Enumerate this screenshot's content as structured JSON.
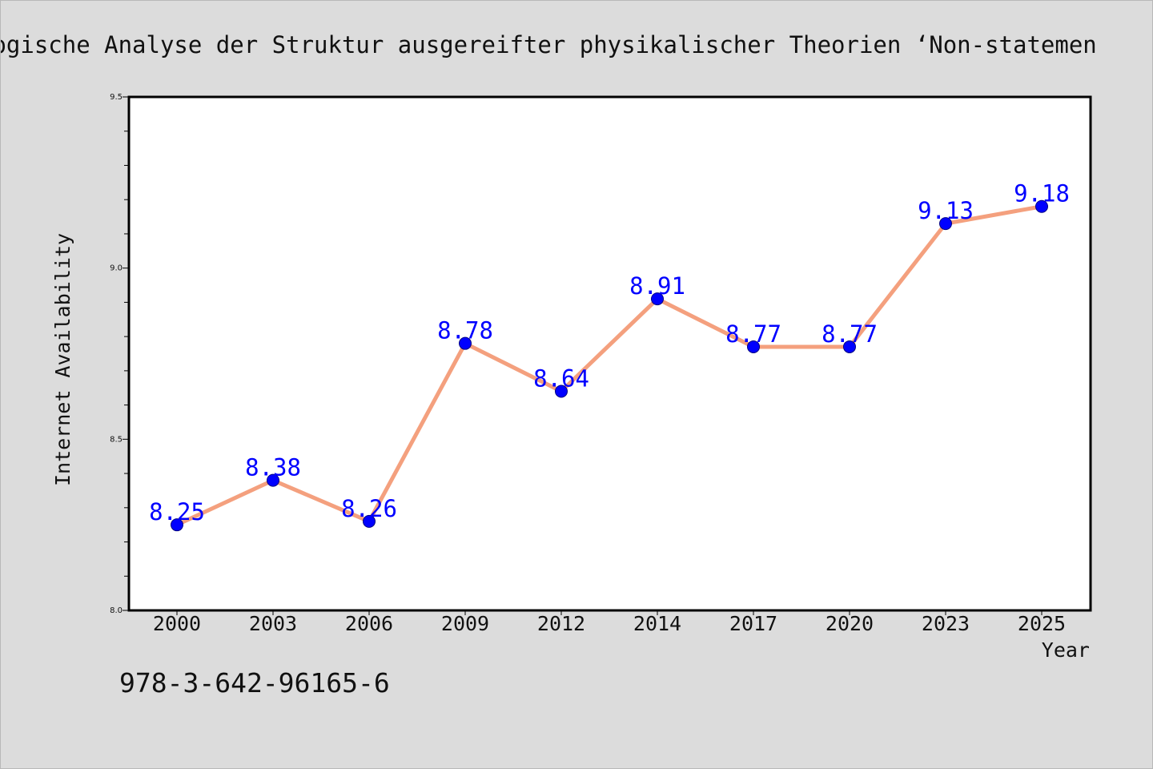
{
  "chart_data": {
    "type": "line",
    "title": "Logische Analyse der Struktur ausgereifter physikalischer Theorien  ‘Non-statemen",
    "xlabel": "Year",
    "ylabel": "Internet Availability",
    "categories": [
      "2000",
      "2003",
      "2006",
      "2009",
      "2012",
      "2014",
      "2017",
      "2020",
      "2023",
      "2025"
    ],
    "values": [
      8.25,
      8.38,
      8.26,
      8.78,
      8.64,
      8.91,
      8.77,
      8.77,
      9.13,
      9.18
    ],
    "data_labels": [
      "8.25",
      "8.38",
      "8.26",
      "8.78",
      "8.64",
      "8.91",
      "8.77",
      "8.77",
      "9.13",
      "9.18"
    ],
    "y_ticks": [
      "8.0",
      "8.5",
      "9.0",
      "9.5"
    ],
    "ylim": [
      8.0,
      9.5
    ],
    "grid": false,
    "colors": {
      "line": "#f4a07e",
      "marker": "#0000ff",
      "marker_edge": "#000080",
      "label": "#0000ff",
      "background": "#dcdcdc",
      "plot_bg": "#ffffff"
    }
  },
  "footer": {
    "isbn": "978-3-642-96165-6"
  }
}
